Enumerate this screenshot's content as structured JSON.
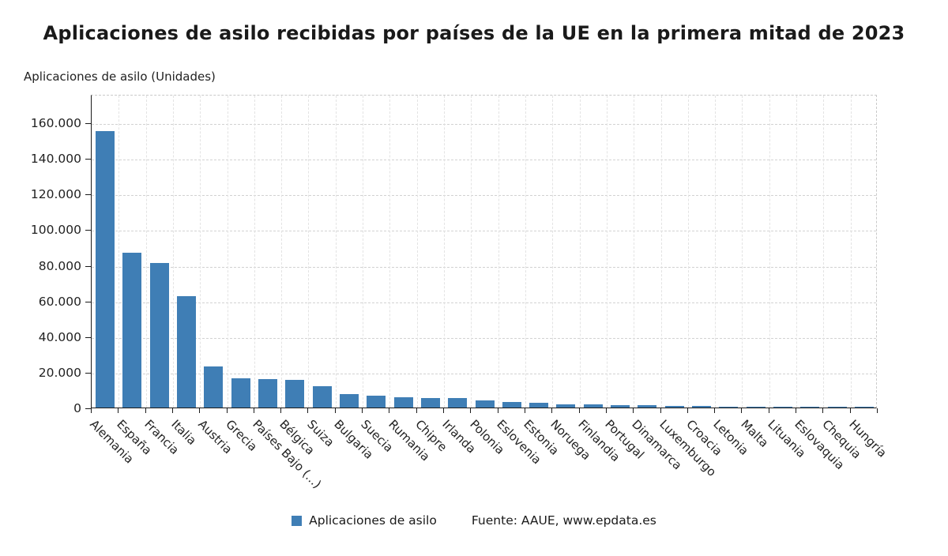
{
  "title": "Aplicaciones de asilo recibidas por países de la UE en la primera mitad de 2023",
  "axis_unit_label": "Aplicaciones de asilo (Unidades)",
  "legend": {
    "label": "Aplicaciones de asilo"
  },
  "source": "Fuente: AAUE, www.epdata.es",
  "colors": {
    "bar": "#3f7eb5",
    "axis": "#1a1a1a",
    "grid": "#d2d2d2"
  },
  "chart_data": {
    "type": "bar",
    "title": "Aplicaciones de asilo recibidas por países de la UE en la primera mitad de 2023",
    "xlabel": "",
    "ylabel": "Aplicaciones de asilo (Unidades)",
    "ylim": [
      0,
      176000
    ],
    "grid": "dashed",
    "legend_position": "bottom",
    "yticks": [
      0,
      20000,
      40000,
      60000,
      80000,
      100000,
      120000,
      140000,
      160000
    ],
    "ytick_labels": [
      "0",
      "20.000",
      "40.000",
      "60.000",
      "80.000",
      "100.000",
      "120.000",
      "140.000",
      "160.000"
    ],
    "categories": [
      "Alemania",
      "España",
      "Francia",
      "Italia",
      "Austria",
      "Grecia",
      "Países Bajo (...)",
      "Bélgica",
      "Suiza",
      "Bulgaria",
      "Suecia",
      "Rumania",
      "Chipre",
      "Irlanda",
      "Polonia",
      "Eslovenia",
      "Estonia",
      "Noruega",
      "Finlandia",
      "Portugal",
      "Dinamarca",
      "Luxemburgo",
      "Croacia",
      "Letonia",
      "Malta",
      "Lituania",
      "Eslovaquia",
      "Chequia",
      "Hungría"
    ],
    "values": [
      155000,
      87000,
      81000,
      62500,
      23000,
      16500,
      15800,
      15500,
      12000,
      7500,
      6500,
      5700,
      5500,
      5200,
      4000,
      3000,
      2500,
      1800,
      1700,
      1300,
      1200,
      1100,
      800,
      600,
      450,
      350,
      250,
      150,
      30
    ]
  }
}
